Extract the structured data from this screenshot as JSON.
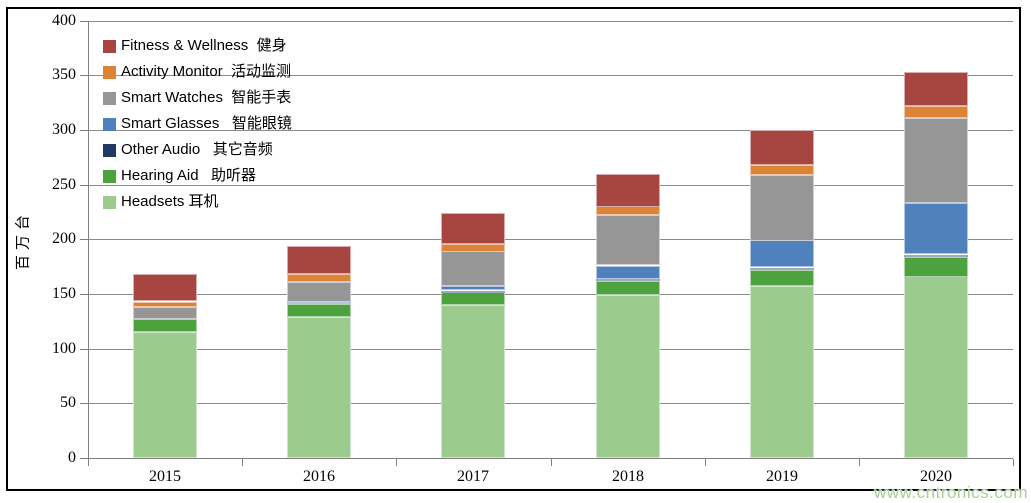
{
  "watermark": {
    "text": "www.cntronics.com",
    "color": "#A6D096"
  },
  "legend": {
    "position": "top-left",
    "items": [
      {
        "key": "fitness_wellness",
        "label": "Fitness & Wellness  健身",
        "color": "#A74541"
      },
      {
        "key": "activity_monitor",
        "label": "Activity Monitor  活动监测",
        "color": "#DC8335"
      },
      {
        "key": "smart_watches",
        "label": "Smart Watches  智能手表",
        "color": "#969696"
      },
      {
        "key": "smart_glasses",
        "label": "Smart Glasses   智能眼镜",
        "color": "#4F81BD"
      },
      {
        "key": "other_audio",
        "label": "Other Audio   其它音频",
        "color": "#1F3864"
      },
      {
        "key": "hearing_aid",
        "label": "Hearing Aid   助听器",
        "color": "#4CA33E"
      },
      {
        "key": "headsets",
        "label": "Headsets 耳机",
        "color": "#9CCB8E"
      }
    ]
  },
  "chart_data": {
    "type": "bar",
    "stacked": true,
    "title": "",
    "xlabel": "",
    "ylabel": "百万台",
    "ylim": [
      0,
      400
    ],
    "yticks": [
      0,
      50,
      100,
      150,
      200,
      250,
      300,
      350,
      400
    ],
    "grid": true,
    "legend_position": "top-left",
    "categories": [
      "2015",
      "2016",
      "2017",
      "2018",
      "2019",
      "2020"
    ],
    "series": [
      {
        "key": "headsets",
        "name": "Headsets",
        "name_zh": "耳机",
        "color": "#9CCB8E",
        "values": [
          115,
          129,
          140,
          149,
          157,
          166
        ]
      },
      {
        "key": "hearing_aid",
        "name": "Hearing Aid",
        "name_zh": "助听器",
        "color": "#4CA33E",
        "values": [
          12,
          12,
          12,
          13,
          15,
          18
        ]
      },
      {
        "key": "other_audio",
        "name": "Other Audio",
        "name_zh": "其它音频",
        "color": "#1F3864",
        "values": [
          0,
          0,
          1,
          2,
          2,
          2
        ]
      },
      {
        "key": "smart_glasses",
        "name": "Smart Glasses",
        "name_zh": "智能眼镜",
        "color": "#4F81BD",
        "values": [
          0,
          2,
          4,
          12,
          25,
          47
        ]
      },
      {
        "key": "smart_watches",
        "name": "Smart Watches",
        "name_zh": "智能手表",
        "color": "#969696",
        "values": [
          11,
          18,
          32,
          46,
          60,
          78
        ]
      },
      {
        "key": "activity_monitor",
        "name": "Activity Monitor",
        "name_zh": "活动监测",
        "color": "#DC8335",
        "values": [
          5,
          7,
          7,
          8,
          9,
          11
        ]
      },
      {
        "key": "fitness_wellness",
        "name": "Fitness & Wellness",
        "name_zh": "健身",
        "color": "#A74541",
        "values": [
          25,
          26,
          28,
          30,
          32,
          31
        ]
      }
    ],
    "totals": [
      168,
      194,
      224,
      260,
      300,
      353
    ]
  }
}
